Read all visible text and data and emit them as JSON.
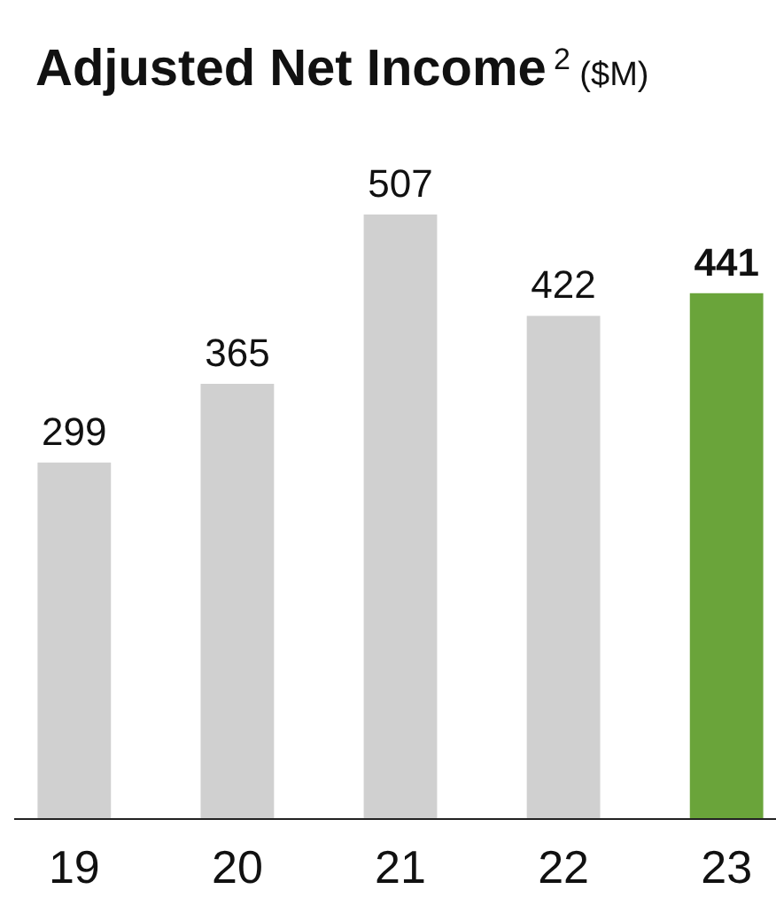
{
  "chart_data": {
    "type": "bar",
    "title": "Adjusted Net Income$^{2}$ ($M)",
    "categories": [
      "19",
      "20",
      "21",
      "22",
      "23"
    ],
    "values": [
      299,
      365,
      507,
      422,
      441
    ],
    "colors": [
      "#d0d0d0",
      "#d0d0d0",
      "#d0d0d0",
      "#d0d0d0",
      "#6aa43a"
    ],
    "data_labels": true
  }
}
